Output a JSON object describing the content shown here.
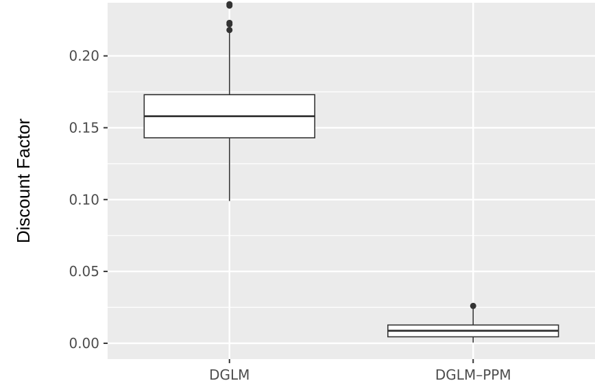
{
  "chart_data": {
    "type": "boxplot",
    "title": "",
    "xlabel": "",
    "ylabel": "Discount Factor",
    "categories": [
      "DGLM",
      "DGLM–PPM"
    ],
    "ylim": [
      -0.011,
      0.237
    ],
    "y_ticks": [
      0.0,
      0.05,
      0.1,
      0.15,
      0.2
    ],
    "y_tick_labels": [
      "0.00",
      "0.05",
      "0.10",
      "0.15",
      "0.20"
    ],
    "grid": true,
    "legend": "none",
    "boxes": [
      {
        "category": "DGLM",
        "whisker_low": 0.099,
        "q1": 0.143,
        "median": 0.158,
        "q3": 0.173,
        "whisker_high": 0.218,
        "outliers": [
          0.218,
          0.222,
          0.223,
          0.235,
          0.236
        ]
      },
      {
        "category": "DGLM–PPM",
        "whisker_low": 0.0005,
        "q1": 0.0045,
        "median": 0.0087,
        "q3": 0.0127,
        "whisker_high": 0.026,
        "outliers": [
          0.026
        ]
      }
    ],
    "colors": {
      "panel": "#ebebeb",
      "grid_major": "#ffffff",
      "box_fill": "#ffffff",
      "box_line": "#333333",
      "tick_text": "#4d4d4d",
      "tick_mark": "#333333"
    }
  }
}
